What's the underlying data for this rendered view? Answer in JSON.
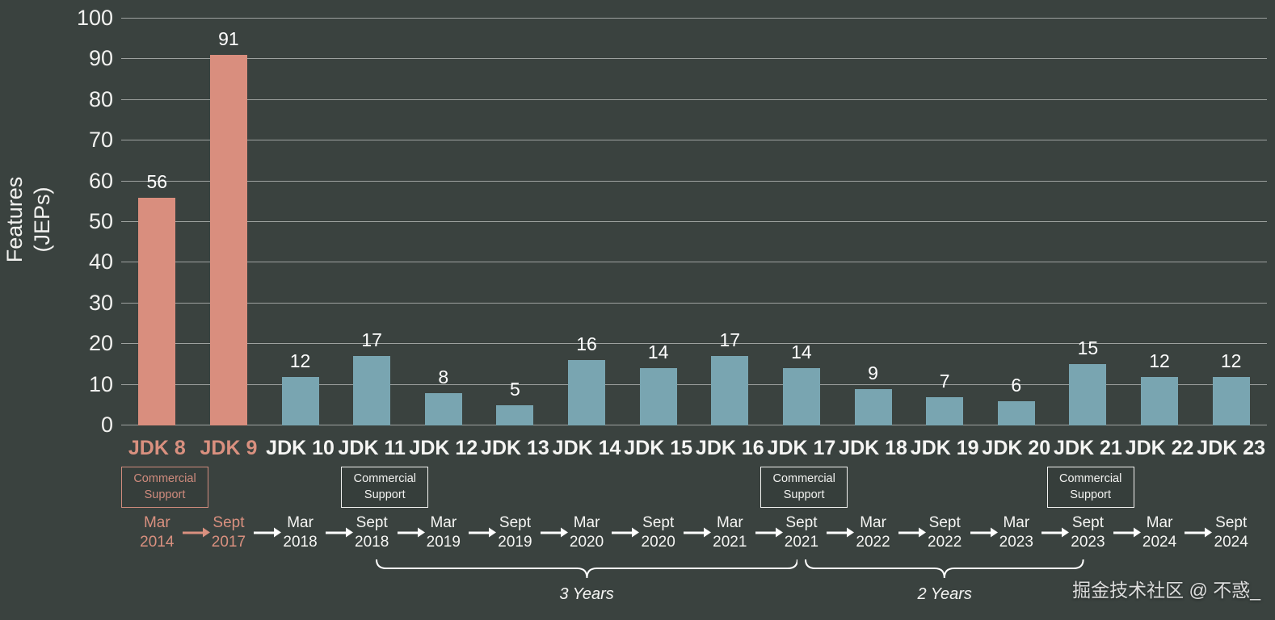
{
  "page": {
    "background": "#3a423f",
    "watermark": "掘金技术社区 @ 不惑_"
  },
  "chart_data": {
    "type": "bar",
    "title": "",
    "ylabel": "Features (JEPs)",
    "xlabel": "",
    "ylim": [
      0,
      100
    ],
    "yticks": [
      0,
      10,
      20,
      30,
      40,
      50,
      60,
      70,
      80,
      90,
      100
    ],
    "grid": true,
    "legend": false,
    "categories": [
      "JDK 8",
      "JDK 9",
      "JDK 10",
      "JDK 11",
      "JDK 12",
      "JDK 13",
      "JDK 14",
      "JDK 15",
      "JDK 16",
      "JDK 17",
      "JDK 18",
      "JDK 19",
      "JDK 20",
      "JDK 21",
      "JDK 22",
      "JDK 23"
    ],
    "values": [
      56,
      91,
      12,
      17,
      8,
      5,
      16,
      14,
      17,
      14,
      9,
      7,
      6,
      15,
      12,
      12
    ],
    "highlighted": [
      true,
      true,
      false,
      false,
      false,
      false,
      false,
      false,
      false,
      false,
      false,
      false,
      false,
      false,
      false,
      false
    ],
    "release_dates": [
      "Mar 2014",
      "Sept 2017",
      "Mar 2018",
      "Sept 2018",
      "Mar 2019",
      "Sept 2019",
      "Mar 2020",
      "Sept 2020",
      "Mar 2021",
      "Sept 2021",
      "Mar 2022",
      "Sept 2022",
      "Mar 2023",
      "Sept 2023",
      "Mar 2024",
      "Sept 2024"
    ],
    "commercial_support_label": "Commercial Support",
    "commercial_support_indices": [
      0,
      3,
      9,
      13
    ],
    "braces": [
      {
        "label": "3 Years",
        "from_index": 3,
        "to_index": 9,
        "from_date": "Sept 2018",
        "to_date": "Sept 2021"
      },
      {
        "label": "2 Years",
        "from_index": 9,
        "to_index": 13,
        "from_date": "Sept 2021",
        "to_date": "Sept 2023"
      }
    ],
    "colors": {
      "highlight_bar": "#d98e7e",
      "normal_bar": "#79a5b1",
      "highlight_text": "#d9907f",
      "text": "#f3f3f1",
      "gridline": "rgba(255,255,255,0.5)",
      "arrow": "#ffffff",
      "highlight_arrow": "#d9907f"
    }
  }
}
